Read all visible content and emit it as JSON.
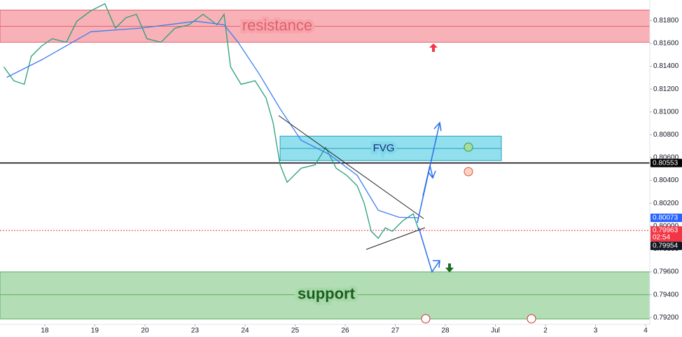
{
  "chart_data": {
    "type": "line",
    "xlim": [
      -0.895,
      12.084
    ],
    "xticks": [
      {
        "value": 0,
        "label": "18"
      },
      {
        "value": 1,
        "label": "19"
      },
      {
        "value": 2,
        "label": "20"
      },
      {
        "value": 3,
        "label": "23"
      },
      {
        "value": 4,
        "label": "24"
      },
      {
        "value": 5,
        "label": "25"
      },
      {
        "value": 6,
        "label": "26"
      },
      {
        "value": 7,
        "label": "27"
      },
      {
        "value": 8,
        "label": "28"
      },
      {
        "value": 9,
        "label": "Jul"
      },
      {
        "value": 10,
        "label": "2"
      },
      {
        "value": 11,
        "label": "3"
      },
      {
        "value": 12,
        "label": "4"
      }
    ],
    "ylim": [
      0.7914,
      0.8198
    ],
    "yticks": [
      {
        "value": 0.792,
        "label": "0.79200"
      },
      {
        "value": 0.794,
        "label": "0.79400"
      },
      {
        "value": 0.796,
        "label": "0.79600"
      },
      {
        "value": 0.798,
        "label": "0.79800"
      },
      {
        "value": 0.8,
        "label": "0.80000"
      },
      {
        "value": 0.802,
        "label": "0.80200"
      },
      {
        "value": 0.804,
        "label": "0.80400"
      },
      {
        "value": 0.806,
        "label": "0.80600"
      },
      {
        "value": 0.808,
        "label": "0.80800"
      },
      {
        "value": 0.81,
        "label": "0.81000"
      },
      {
        "value": 0.812,
        "label": "0.81200"
      },
      {
        "value": 0.814,
        "label": "0.81400"
      },
      {
        "value": 0.816,
        "label": "0.81600"
      },
      {
        "value": 0.818,
        "label": "0.81800"
      }
    ],
    "zones": [
      {
        "label": "resistance",
        "range": [
          0.8161,
          0.81892
        ],
        "mid": 0.8175,
        "color": "#f7a3aa",
        "border": "#e06570",
        "text_color": "#e0606c"
      },
      {
        "label": "support",
        "range": [
          0.79188,
          0.796
        ],
        "mid": 0.794,
        "color": "#a6d8a8",
        "border": "#5fae62",
        "text_color": "#1b5e20"
      },
      {
        "label": "FVG",
        "range": [
          0.80574,
          0.80788
        ],
        "xrange": [
          4.7,
          9.12
        ],
        "mid": 0.8068,
        "color": "#7fd9ea",
        "border": "#2a9fc0",
        "text_color": "#1a2a7a"
      }
    ],
    "series": [
      {
        "color": "#26a07a",
        "x": [
          -0.82,
          -0.62,
          -0.41,
          -0.27,
          -0.06,
          0.15,
          0.43,
          0.64,
          0.92,
          1.2,
          1.41,
          1.62,
          1.83,
          2.04,
          2.32,
          2.6,
          2.88,
          3.16,
          3.44,
          3.58,
          3.71,
          3.92,
          4.2,
          4.42,
          4.56,
          4.7,
          4.84,
          5.12,
          5.4,
          5.61,
          5.82,
          6.03,
          6.24,
          6.38,
          6.52,
          6.66,
          6.8,
          6.94,
          7.15,
          7.36,
          7.47
        ],
        "values": [
          0.81395,
          0.81273,
          0.81242,
          0.81487,
          0.81579,
          0.81641,
          0.8161,
          0.81794,
          0.81886,
          0.81947,
          0.81733,
          0.81825,
          0.81855,
          0.81641,
          0.8161,
          0.81733,
          0.81763,
          0.81855,
          0.81763,
          0.81855,
          0.81395,
          0.81242,
          0.81273,
          0.8112,
          0.80905,
          0.80537,
          0.80384,
          0.80507,
          0.80537,
          0.8069,
          0.80507,
          0.80445,
          0.80353,
          0.802,
          0.79955,
          0.79894,
          0.79985,
          0.79955,
          0.80047,
          0.80108,
          0.79963
        ]
      },
      {
        "color": "#3d7ef0",
        "x": [
          -0.76,
          -0.06,
          0.92,
          1.9,
          3.02,
          3.58,
          3.86,
          4.28,
          4.7,
          5.12,
          5.68,
          6.24,
          6.66,
          7.08,
          7.47
        ],
        "values": [
          0.81303,
          0.81457,
          0.81702,
          0.81733,
          0.81794,
          0.81763,
          0.8161,
          0.81334,
          0.81028,
          0.80752,
          0.80629,
          0.80445,
          0.80139,
          0.80077,
          0.80073
        ]
      }
    ],
    "price_lines": [
      {
        "value": 0.80553,
        "label": "0.80553",
        "color": "#000000",
        "line": "solid"
      },
      {
        "value": 0.80073,
        "label": "0.80073",
        "color": "#2962ff"
      },
      {
        "value": 0.79963,
        "label": "0.79963",
        "color": "#f23645",
        "line": "dotted",
        "countdown": "02:54"
      },
      {
        "value": 0.79954,
        "label": "0.79954",
        "color": "#131722"
      }
    ]
  }
}
